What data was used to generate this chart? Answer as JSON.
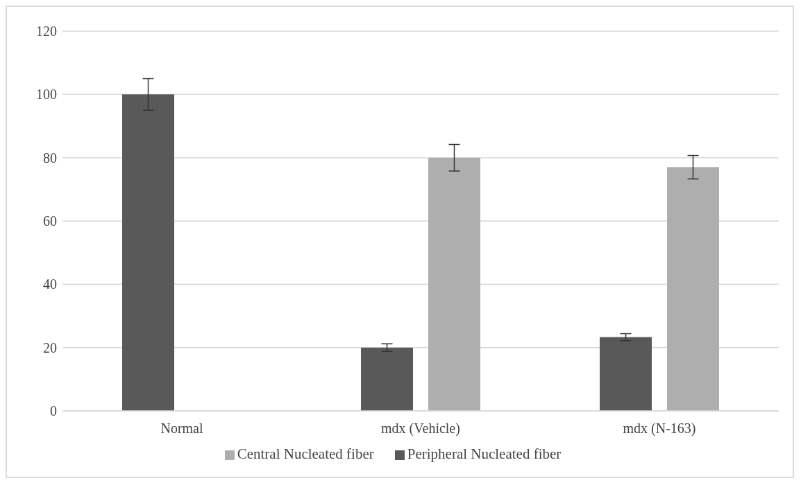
{
  "chart_data": {
    "type": "bar",
    "categories": [
      "Normal",
      "mdx (Vehicle)",
      "mdx (N-163)"
    ],
    "series": [
      {
        "name": "Peripheral Nucleated fiber",
        "color": "#595959",
        "values": [
          100,
          20,
          23.3
        ],
        "errors": [
          5,
          1.2,
          1.1
        ]
      },
      {
        "name": "Central Nucleated fiber",
        "color": "#aeaeae",
        "values": [
          0,
          80,
          77
        ],
        "errors": [
          null,
          4.2,
          3.7
        ]
      }
    ],
    "ylim": [
      0,
      120
    ],
    "yticks": [
      0,
      20,
      40,
      60,
      80,
      100,
      120
    ],
    "grid": "y",
    "legend": "bottom"
  }
}
